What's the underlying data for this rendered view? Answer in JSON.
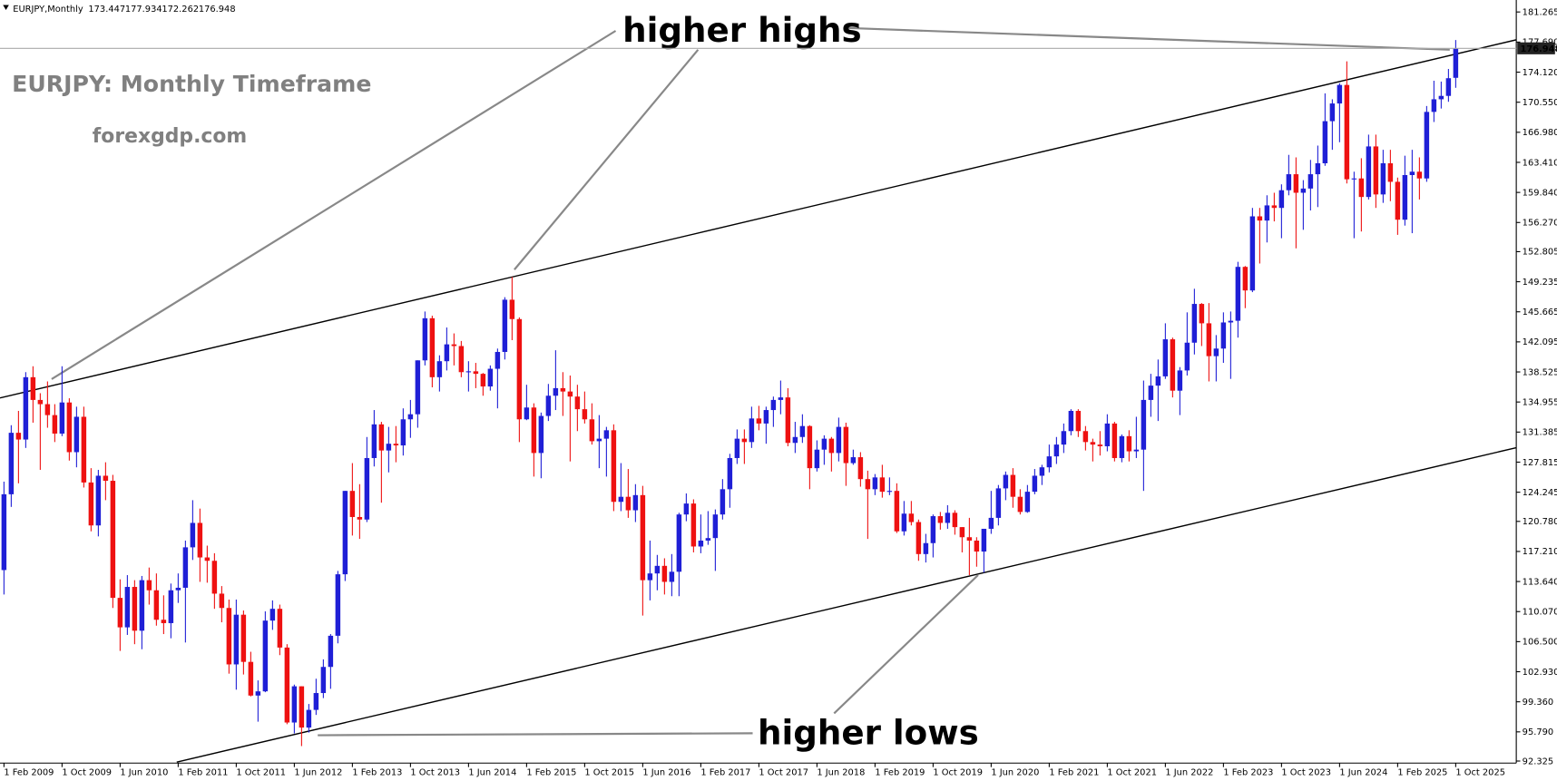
{
  "chart_data": {
    "type": "candlestick",
    "symbol": "EURJPY,Monthly",
    "annotations": [
      "higher highs",
      "EURJPY: Monthly Timeframe",
      "forexgdp.com",
      "higher lows"
    ],
    "up_color": "#1f1fd6",
    "down_color": "#ee1111",
    "grid": false,
    "x": [
      "2009-02",
      "2009-03",
      "2009-04",
      "2009-05",
      "2009-06",
      "2009-07",
      "2009-08",
      "2009-09",
      "2009-10",
      "2009-11",
      "2009-12",
      "2010-01",
      "2010-02",
      "2010-03",
      "2010-04",
      "2010-05",
      "2010-06",
      "2010-07",
      "2010-08",
      "2010-09",
      "2010-10",
      "2010-11",
      "2010-12",
      "2011-01",
      "2011-02",
      "2011-03",
      "2011-04",
      "2011-05",
      "2011-06",
      "2011-07",
      "2011-08",
      "2011-09",
      "2011-10",
      "2011-11",
      "2011-12",
      "2012-01",
      "2012-02",
      "2012-03",
      "2012-04",
      "2012-05",
      "2012-06",
      "2012-07",
      "2012-08",
      "2012-09",
      "2012-10",
      "2012-11",
      "2012-12",
      "2013-01",
      "2013-02",
      "2013-03",
      "2013-04",
      "2013-05",
      "2013-06",
      "2013-07",
      "2013-08",
      "2013-09",
      "2013-10",
      "2013-11",
      "2013-12",
      "2014-01",
      "2014-02",
      "2014-03",
      "2014-04",
      "2014-05",
      "2014-06",
      "2014-07",
      "2014-08",
      "2014-09",
      "2014-10",
      "2014-11",
      "2014-12",
      "2015-01",
      "2015-02",
      "2015-03",
      "2015-04",
      "2015-05",
      "2015-06",
      "2015-07",
      "2015-08",
      "2015-09",
      "2015-10",
      "2015-11",
      "2015-12",
      "2016-01",
      "2016-02",
      "2016-03",
      "2016-04",
      "2016-05",
      "2016-06",
      "2016-07",
      "2016-08",
      "2016-09",
      "2016-10",
      "2016-11",
      "2016-12",
      "2017-01",
      "2017-02",
      "2017-03",
      "2017-04",
      "2017-05",
      "2017-06",
      "2017-07",
      "2017-08",
      "2017-09",
      "2017-10",
      "2017-11",
      "2017-12",
      "2018-01",
      "2018-02",
      "2018-03",
      "2018-04",
      "2018-05",
      "2018-06",
      "2018-07",
      "2018-08",
      "2018-09",
      "2018-10",
      "2018-11",
      "2018-12",
      "2019-01",
      "2019-02",
      "2019-03",
      "2019-04",
      "2019-05",
      "2019-06",
      "2019-07",
      "2019-08",
      "2019-09",
      "2019-10",
      "2019-11",
      "2019-12",
      "2020-01",
      "2020-02",
      "2020-03",
      "2020-04",
      "2020-05",
      "2020-06",
      "2020-07",
      "2020-08",
      "2020-09",
      "2020-10",
      "2020-11",
      "2020-12",
      "2021-01",
      "2021-02",
      "2021-03",
      "2021-04",
      "2021-05",
      "2021-06",
      "2021-07",
      "2021-08",
      "2021-09",
      "2021-10",
      "2021-11",
      "2021-12",
      "2022-01",
      "2022-02",
      "2022-03",
      "2022-04",
      "2022-05",
      "2022-06",
      "2022-07",
      "2022-08",
      "2022-09",
      "2022-10",
      "2022-11",
      "2022-12",
      "2023-01",
      "2023-02",
      "2023-03",
      "2023-04",
      "2023-05",
      "2023-06",
      "2023-07",
      "2023-08",
      "2023-09",
      "2023-10",
      "2023-11",
      "2023-12",
      "2024-01",
      "2024-02",
      "2024-03",
      "2024-04",
      "2024-05",
      "2024-06",
      "2024-07",
      "2024-08",
      "2024-09",
      "2024-10",
      "2024-11",
      "2024-12",
      "2025-01",
      "2025-02",
      "2025-03",
      "2025-04",
      "2025-05",
      "2025-06",
      "2025-07",
      "2025-08",
      "2025-09",
      "2025-10"
    ],
    "open": [
      115.0,
      124.0,
      131.3,
      130.5,
      137.9,
      135.2,
      134.7,
      133.4,
      131.2,
      134.9,
      129.0,
      133.2,
      125.4,
      120.3,
      126.2,
      125.6,
      111.7,
      108.2,
      113.0,
      107.8,
      113.8,
      112.6,
      109.1,
      108.7,
      112.6,
      112.9,
      117.7,
      120.6,
      116.5,
      116.1,
      112.2,
      110.5,
      103.8,
      109.7,
      104.1,
      100.1,
      100.6,
      109.0,
      110.4,
      105.8,
      96.9,
      101.2,
      96.3,
      98.4,
      100.4,
      103.5,
      107.2,
      114.5,
      124.4,
      121.3,
      121.0,
      128.3,
      132.3,
      129.2,
      130.0,
      129.8,
      132.9,
      133.5,
      139.9,
      144.9,
      137.9,
      139.8,
      141.8,
      141.6,
      138.5,
      138.6,
      138.3,
      136.8,
      138.9,
      140.9,
      147.1,
      144.8,
      132.9,
      134.3,
      128.9,
      133.3,
      135.7,
      136.6,
      136.2,
      135.6,
      134.1,
      132.9,
      130.3,
      130.6,
      131.6,
      123.1,
      123.7,
      122.1,
      123.9,
      113.8,
      114.6,
      115.5,
      113.6,
      114.8,
      121.6,
      122.9,
      117.8,
      118.5,
      118.8,
      121.6,
      124.6,
      128.3,
      130.6,
      130.2,
      133.0,
      132.4,
      134.0,
      135.2,
      135.5,
      130.1,
      130.8,
      132.1,
      127.1,
      129.3,
      130.6,
      128.9,
      132.0,
      127.7,
      128.4,
      125.8,
      124.6,
      126.0,
      124.3,
      124.4,
      119.6,
      121.7,
      120.7,
      116.9,
      118.2,
      121.4,
      120.6,
      121.8,
      120.1,
      118.9,
      118.5,
      117.2,
      119.9,
      121.2,
      124.7,
      126.3,
      123.7,
      121.9,
      124.3,
      126.2,
      127.2,
      128.5,
      129.9,
      131.5,
      133.9,
      131.5,
      130.2,
      129.9,
      129.7,
      132.4,
      128.3,
      130.9,
      129.1,
      129.3,
      135.2,
      136.9,
      138.0,
      142.4,
      136.3,
      138.7,
      142.0,
      146.6,
      144.3,
      140.4,
      141.3,
      144.4,
      144.6,
      151.0,
      148.2,
      157.0,
      156.5,
      158.3,
      158.0,
      160.1,
      162.0,
      159.8,
      160.3,
      162.0,
      163.3,
      168.3,
      170.4,
      172.6,
      161.4,
      161.5,
      159.3,
      165.3,
      159.6,
      163.3,
      161.1,
      156.6,
      161.9,
      162.3,
      161.5,
      169.4,
      170.9,
      171.3,
      173.447
    ],
    "high": [
      125.5,
      132.2,
      133.9,
      138.5,
      139.2,
      136.0,
      137.4,
      134.7,
      139.2,
      135.4,
      134.4,
      134.4,
      127.1,
      126.9,
      127.8,
      126.3,
      113.9,
      114.4,
      113.8,
      114.3,
      115.3,
      114.6,
      112.0,
      113.4,
      114.6,
      118.5,
      123.3,
      122.3,
      117.9,
      117.0,
      113.1,
      111.5,
      111.5,
      110.2,
      105.3,
      101.9,
      110.1,
      111.4,
      110.9,
      106.2,
      101.4,
      101.2,
      99.1,
      102.1,
      104.4,
      107.4,
      114.9,
      124.4,
      127.7,
      125.2,
      130.8,
      134.0,
      132.6,
      132.0,
      132.1,
      134.2,
      135.2,
      139.9,
      145.7,
      145.2,
      140.5,
      143.8,
      143.1,
      142.2,
      139.8,
      139.6,
      138.4,
      139.3,
      141.3,
      147.4,
      149.8,
      145.0,
      137.0,
      134.8,
      133.7,
      137.1,
      141.1,
      138.5,
      138.1,
      137.0,
      136.2,
      134.8,
      133.4,
      132.0,
      132.3,
      127.7,
      127.0,
      125.2,
      125.0,
      118.5,
      116.8,
      116.4,
      116.9,
      121.8,
      124.1,
      123.4,
      121.6,
      122.0,
      122.2,
      125.8,
      128.8,
      131.7,
      131.7,
      134.4,
      134.5,
      134.4,
      135.6,
      137.5,
      136.6,
      132.6,
      133.5,
      132.2,
      130.4,
      131.0,
      130.8,
      133.1,
      132.5,
      129.3,
      129.0,
      126.8,
      126.4,
      127.5,
      126.0,
      125.3,
      123.2,
      123.2,
      121.0,
      119.3,
      121.6,
      121.9,
      122.7,
      122.1,
      120.1,
      121.2,
      118.9,
      119.9,
      124.4,
      125.1,
      126.7,
      127.1,
      124.6,
      125.1,
      127.0,
      127.5,
      129.9,
      130.8,
      132.4,
      134.1,
      134.1,
      132.1,
      130.6,
      131.5,
      133.5,
      132.6,
      131.1,
      131.6,
      133.2,
      137.5,
      138.3,
      140.0,
      144.3,
      142.6,
      139.1,
      145.6,
      148.4,
      146.7,
      146.7,
      142.9,
      145.6,
      145.7,
      151.6,
      151.1,
      158.0,
      158.0,
      159.5,
      159.8,
      160.8,
      164.3,
      164.0,
      161.3,
      163.7,
      165.4,
      171.6,
      170.9,
      172.8,
      175.4,
      162.3,
      163.9,
      166.7,
      166.7,
      164.9,
      164.9,
      161.6,
      164.2,
      164.9,
      164.0,
      170.1,
      173.1,
      173.0,
      174.5,
      177.934
    ],
    "low": [
      112.1,
      122.5,
      125.3,
      129.5,
      132.5,
      126.9,
      131.9,
      130.2,
      130.9,
      128.0,
      127.2,
      124.8,
      119.6,
      119.0,
      123.3,
      110.5,
      105.4,
      107.3,
      106.2,
      105.6,
      110.9,
      108.4,
      107.4,
      106.9,
      111.1,
      106.4,
      116.2,
      113.6,
      113.5,
      110.4,
      108.8,
      102.7,
      100.8,
      102.6,
      100.0,
      97.0,
      100.5,
      107.9,
      104.9,
      96.7,
      95.6,
      94.1,
      95.7,
      97.8,
      99.8,
      100.9,
      106.3,
      113.7,
      119.1,
      118.7,
      120.7,
      127.3,
      123.0,
      126.6,
      127.8,
      128.6,
      130.7,
      131.9,
      139.3,
      136.7,
      136.2,
      138.7,
      139.3,
      137.9,
      136.2,
      136.6,
      135.7,
      136.3,
      134.2,
      140.0,
      142.3,
      130.2,
      132.8,
      126.1,
      125.9,
      132.7,
      134.0,
      133.3,
      127.9,
      131.5,
      132.4,
      129.9,
      127.1,
      126.1,
      122.0,
      122.0,
      121.2,
      120.7,
      109.6,
      111.4,
      112.6,
      112.1,
      111.9,
      111.9,
      120.8,
      117.1,
      117.0,
      118.0,
      114.9,
      121.0,
      122.4,
      127.6,
      127.6,
      129.5,
      131.6,
      130.0,
      132.0,
      133.5,
      129.7,
      128.9,
      130.1,
      124.6,
      126.7,
      127.5,
      126.7,
      127.9,
      125.0,
      127.5,
      124.9,
      118.7,
      123.9,
      123.6,
      123.9,
      119.4,
      119.1,
      120.3,
      116.1,
      115.9,
      116.5,
      119.8,
      119.9,
      119.2,
      117.1,
      114.4,
      115.4,
      114.7,
      119.3,
      120.3,
      123.3,
      122.4,
      121.6,
      121.8,
      124.0,
      125.1,
      126.6,
      127.6,
      128.9,
      131.0,
      130.8,
      129.2,
      127.9,
      128.6,
      129.1,
      127.9,
      127.8,
      127.9,
      128.3,
      124.4,
      133.2,
      132.7,
      137.7,
      135.5,
      133.4,
      138.1,
      140.6,
      141.6,
      137.4,
      137.4,
      139.6,
      137.7,
      142.6,
      146.1,
      148.0,
      151.4,
      153.9,
      156.4,
      154.4,
      159.5,
      153.2,
      155.4,
      157.7,
      158.1,
      163.0,
      164.9,
      165.8,
      160.9,
      154.4,
      155.2,
      159.0,
      158.0,
      158.6,
      158.8,
      154.8,
      155.9,
      155.0,
      159.0,
      161.1,
      168.2,
      169.8,
      170.6,
      172.262
    ],
    "close": [
      124.0,
      131.3,
      130.5,
      137.9,
      135.2,
      134.7,
      133.4,
      131.2,
      134.9,
      129.0,
      133.2,
      125.4,
      120.3,
      126.2,
      125.6,
      111.7,
      108.2,
      113.0,
      107.8,
      113.8,
      112.6,
      109.1,
      108.7,
      112.6,
      112.9,
      117.7,
      120.6,
      116.5,
      116.1,
      112.2,
      110.5,
      103.8,
      109.7,
      104.1,
      100.1,
      100.6,
      109.0,
      110.4,
      105.8,
      96.9,
      101.2,
      96.3,
      98.4,
      100.4,
      103.5,
      107.2,
      114.5,
      124.4,
      121.3,
      121.0,
      128.3,
      132.3,
      129.2,
      130.0,
      129.8,
      132.9,
      133.5,
      139.9,
      144.9,
      137.9,
      139.8,
      141.8,
      141.6,
      138.5,
      138.6,
      138.3,
      136.8,
      138.9,
      140.9,
      147.1,
      144.8,
      132.9,
      134.3,
      128.9,
      133.3,
      135.7,
      136.6,
      136.2,
      135.6,
      134.1,
      132.9,
      130.3,
      130.6,
      131.6,
      123.1,
      123.7,
      122.1,
      123.9,
      113.8,
      114.6,
      115.5,
      113.6,
      114.8,
      121.6,
      122.9,
      117.8,
      118.5,
      118.8,
      121.6,
      124.6,
      128.3,
      130.6,
      130.2,
      133.0,
      132.4,
      134.0,
      135.2,
      135.5,
      130.1,
      130.8,
      132.1,
      127.1,
      129.3,
      130.6,
      128.9,
      132.0,
      127.7,
      128.4,
      125.8,
      124.6,
      126.0,
      124.3,
      124.4,
      119.6,
      121.7,
      120.7,
      116.9,
      118.2,
      121.4,
      120.6,
      121.8,
      120.1,
      118.9,
      118.5,
      117.2,
      119.9,
      121.2,
      124.7,
      126.3,
      123.7,
      121.9,
      124.3,
      126.2,
      127.2,
      128.5,
      129.9,
      131.5,
      133.9,
      131.5,
      130.2,
      129.9,
      129.7,
      132.4,
      128.3,
      130.9,
      129.1,
      129.3,
      135.2,
      136.9,
      138.0,
      142.4,
      136.3,
      138.7,
      142.0,
      146.6,
      144.3,
      140.4,
      141.3,
      144.4,
      144.6,
      151.0,
      148.2,
      157.0,
      156.5,
      158.3,
      158.0,
      160.1,
      162.0,
      159.8,
      160.3,
      162.0,
      163.3,
      168.3,
      170.4,
      172.6,
      161.4,
      161.5,
      159.3,
      165.3,
      159.6,
      163.3,
      161.1,
      156.6,
      161.9,
      162.3,
      161.5,
      169.4,
      170.9,
      171.3,
      173.4,
      176.948
    ],
    "ylim": [
      92.2,
      182.45
    ],
    "yticks": [
      181.265,
      {
        "value": 177.69,
        "label": "177.690"
      },
      {
        "value": 174.12,
        "label": "174.120"
      },
      {
        "value": 170.55,
        "label": "170.550"
      },
      {
        "value": 166.98,
        "label": "166.980"
      },
      {
        "value": 163.41,
        "label": "163.410"
      },
      {
        "value": 159.84,
        "label": "159.840"
      },
      {
        "value": 156.27,
        "label": "156.270"
      },
      152.805,
      149.235,
      145.665,
      142.095,
      138.525,
      134.955,
      131.385,
      127.815,
      124.245,
      {
        "value": 120.78,
        "label": "120.780"
      },
      {
        "value": 117.21,
        "label": "117.210"
      },
      {
        "value": 113.64,
        "label": "113.640"
      },
      {
        "value": 110.07,
        "label": "110.070"
      },
      {
        "value": 106.5,
        "label": "106.500"
      },
      {
        "value": 102.93,
        "label": "102.930"
      },
      {
        "value": 99.36,
        "label": "99.360"
      },
      {
        "value": 95.79,
        "label": "95.790"
      },
      92.325
    ],
    "xticks": [
      {
        "value": "2009-02",
        "label": "1 Feb 2009"
      },
      {
        "value": "2009-10",
        "label": "1 Oct 2009"
      },
      {
        "value": "2010-06",
        "label": "1 Jun 2010"
      },
      {
        "value": "2011-02",
        "label": "1 Feb 2011"
      },
      {
        "value": "2011-10",
        "label": "1 Oct 2011"
      },
      {
        "value": "2012-06",
        "label": "1 Jun 2012"
      },
      {
        "value": "2013-02",
        "label": "1 Feb 2013"
      },
      {
        "value": "2013-10",
        "label": "1 Oct 2013"
      },
      {
        "value": "2014-06",
        "label": "1 Jun 2014"
      },
      {
        "value": "2015-02",
        "label": "1 Feb 2015"
      },
      {
        "value": "2015-10",
        "label": "1 Oct 2015"
      },
      {
        "value": "2016-06",
        "label": "1 Jun 2016"
      },
      {
        "value": "2017-02",
        "label": "1 Feb 2017"
      },
      {
        "value": "2017-10",
        "label": "1 Oct 2017"
      },
      {
        "value": "2018-06",
        "label": "1 Jun 2018"
      },
      {
        "value": "2019-02",
        "label": "1 Feb 2019"
      },
      {
        "value": "2019-10",
        "label": "1 Oct 2019"
      },
      {
        "value": "2020-06",
        "label": "1 Jun 2020"
      },
      {
        "value": "2021-02",
        "label": "1 Feb 2021"
      },
      {
        "value": "2021-10",
        "label": "1 Oct 2021"
      },
      {
        "value": "2022-06",
        "label": "1 Jun 2022"
      },
      {
        "value": "2023-02",
        "label": "1 Feb 2023"
      },
      {
        "value": "2023-10",
        "label": "1 Oct 2023"
      },
      {
        "value": "2024-06",
        "label": "1 Jun 2024"
      },
      {
        "value": "2025-02",
        "label": "1 Feb 2025"
      },
      {
        "value": "2025-10",
        "label": "1 Oct 2025"
      }
    ]
  }
}
